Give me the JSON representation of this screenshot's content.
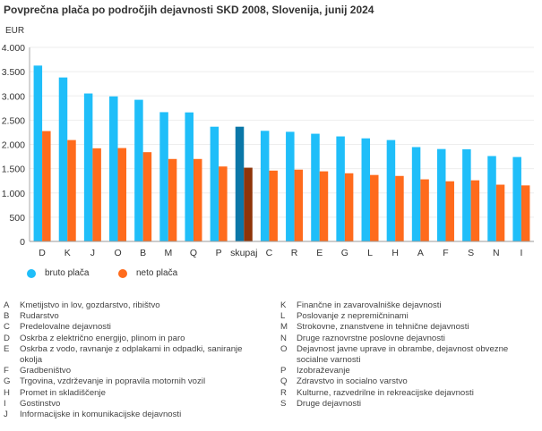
{
  "chart_data": {
    "type": "bar",
    "title": "Povprečna plača po področjih dejavnosti SKD 2008, Slovenija, junij 2024",
    "ylabel": "EUR",
    "xlabel": "",
    "ylim": [
      0,
      4000
    ],
    "yticks": [
      0,
      500,
      1000,
      1500,
      2000,
      2500,
      3000,
      3500,
      4000
    ],
    "ytick_labels": [
      "0",
      "500",
      "1.000",
      "1.500",
      "2.000",
      "2.500",
      "3.000",
      "3.500",
      "4.000"
    ],
    "grid": true,
    "legend_position": "bottom-left",
    "categories": [
      "D",
      "K",
      "J",
      "O",
      "B",
      "M",
      "Q",
      "P",
      "skupaj",
      "C",
      "R",
      "E",
      "G",
      "L",
      "H",
      "A",
      "F",
      "S",
      "N",
      "I"
    ],
    "highlight_category": "skupaj",
    "series": [
      {
        "name": "bruto plača",
        "color": "#1fbef9",
        "highlight_color": "#0a77a8",
        "values": [
          3625,
          3380,
          3050,
          2990,
          2920,
          2665,
          2660,
          2365,
          2365,
          2280,
          2260,
          2220,
          2165,
          2125,
          2090,
          1945,
          1905,
          1900,
          1760,
          1740
        ]
      },
      {
        "name": "neto plača",
        "color": "#ff6b1c",
        "highlight_color": "#8e3409",
        "values": [
          2275,
          2090,
          1920,
          1925,
          1840,
          1700,
          1700,
          1545,
          1520,
          1460,
          1480,
          1445,
          1405,
          1370,
          1350,
          1280,
          1240,
          1260,
          1170,
          1155
        ]
      }
    ]
  },
  "legend": [
    {
      "label": "bruto plača",
      "color": "#1fbef9"
    },
    {
      "label": "neto plača",
      "color": "#ff6b1c"
    }
  ],
  "codes_left": [
    {
      "code": "A",
      "label": "Kmetijstvo in lov, gozdarstvo, ribištvo"
    },
    {
      "code": "B",
      "label": "Rudarstvo"
    },
    {
      "code": "C",
      "label": "Predelovalne dejavnosti"
    },
    {
      "code": "D",
      "label": "Oskrba z električno energijo, plinom in paro"
    },
    {
      "code": "E",
      "label": "Oskrba z vodo, ravnanje z odplakami in odpadki, saniranje okolja"
    },
    {
      "code": "F",
      "label": "Gradbeništvo"
    },
    {
      "code": "G",
      "label": "Trgovina, vzdrževanje in popravila motornih vozil"
    },
    {
      "code": "H",
      "label": "Promet in skladiščenje"
    },
    {
      "code": "I",
      "label": "Gostinstvo"
    },
    {
      "code": "J",
      "label": "Informacijske in komunikacijske dejavnosti"
    }
  ],
  "codes_right": [
    {
      "code": "K",
      "label": "Finančne in zavarovalniške dejavnosti"
    },
    {
      "code": "L",
      "label": "Poslovanje z nepremičninami"
    },
    {
      "code": "M",
      "label": "Strokovne, znanstvene in tehnične dejavnosti"
    },
    {
      "code": "N",
      "label": "Druge raznovrstne poslovne dejavnosti"
    },
    {
      "code": "O",
      "label": "Dejavnost javne uprave in obrambe, dejavnost obvezne socialne varnosti"
    },
    {
      "code": "P",
      "label": "Izobraževanje"
    },
    {
      "code": "Q",
      "label": "Zdravstvo in socialno varstvo"
    },
    {
      "code": "R",
      "label": "Kulturne, razvedrilne in rekreacijske dejavnosti"
    },
    {
      "code": "S",
      "label": "Druge dejavnosti"
    }
  ]
}
